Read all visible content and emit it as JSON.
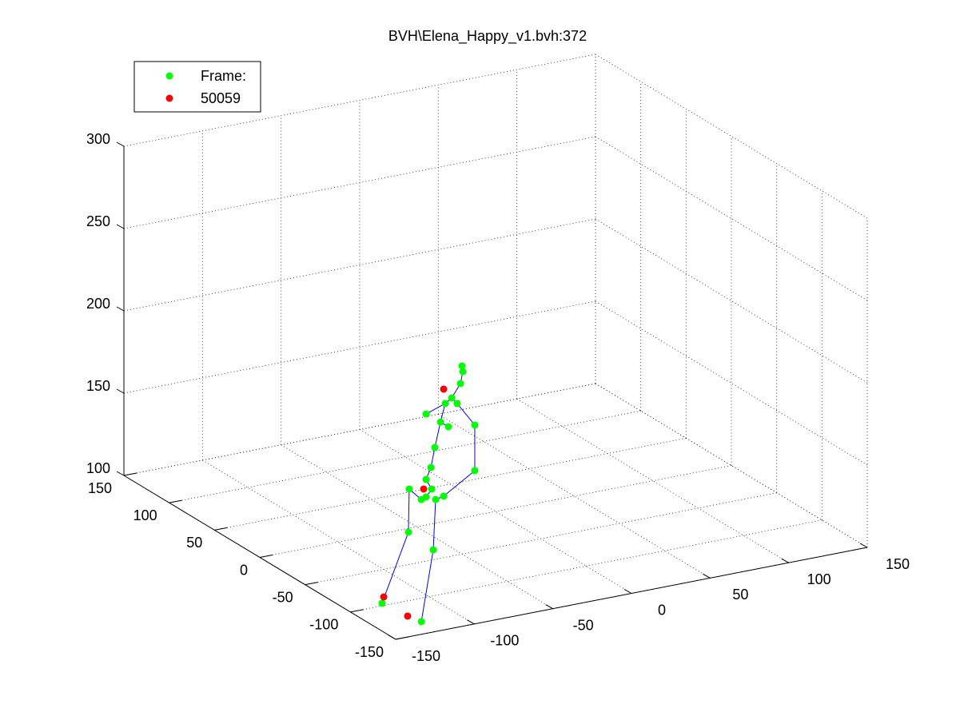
{
  "chart_data": {
    "type": "scatter3d",
    "title": "BVH\\Elena_Happy_v1.bvh:372",
    "series": [
      {
        "name": "Frame:",
        "color": "#00ff00",
        "x": [
          -90.5,
          -90.0,
          -91.5,
          -97.1,
          -101.2,
          -93.6,
          -113.4,
          -82.4,
          -104.2,
          -99.2,
          -107.8,
          -82.4,
          -110.3,
          -113.4,
          -109.8,
          -124.1,
          -116.4,
          -113.4,
          -107.3,
          -102.2,
          -124.6,
          -108.8,
          -141.4,
          -116.4
        ],
        "y": [
          -120,
          -120,
          -120,
          -120,
          -120,
          -120,
          -120,
          -120,
          -120,
          -120,
          -120,
          -120,
          -120,
          -120,
          -120,
          -120,
          -120,
          -120,
          -120,
          -120,
          -120,
          -120,
          -120,
          -120
        ],
        "z": [
          245.0,
          241.5,
          234.5,
          226.8,
          224.2,
          222.8,
          220.1,
          207.6,
          213.5,
          209.7,
          198.7,
          179.9,
          187.0,
          180.3,
          173.8,
          176.5,
          168.7,
          169.7,
          167.0,
          168.1,
          150.4,
          136.7,
          110.3,
          94.5
        ]
      },
      {
        "name": "50059",
        "color": "#ff0000",
        "x": [
          -102.2,
          -114.9,
          -140.3,
          -125.1
        ],
        "y": [
          -120,
          -120,
          -120,
          -120
        ],
        "z": [
          233.1,
          174.8,
          114.0,
          99.5
        ]
      }
    ],
    "edges": [
      [
        0,
        1
      ],
      [
        1,
        2
      ],
      [
        2,
        3
      ],
      [
        3,
        4
      ],
      [
        3,
        5
      ],
      [
        4,
        6
      ],
      [
        5,
        7
      ],
      [
        7,
        11
      ],
      [
        11,
        19
      ],
      [
        4,
        8
      ],
      [
        8,
        9
      ],
      [
        8,
        10
      ],
      [
        10,
        12
      ],
      [
        12,
        13
      ],
      [
        13,
        14
      ],
      [
        14,
        17
      ],
      [
        15,
        16
      ],
      [
        16,
        17
      ],
      [
        15,
        20
      ],
      [
        20,
        22
      ],
      [
        18,
        19
      ],
      [
        18,
        21
      ],
      [
        21,
        23
      ]
    ],
    "edge_color": "#0000ff",
    "xlim": [
      -150,
      150
    ],
    "ylim": [
      -150,
      150
    ],
    "zlim": [
      100,
      300
    ],
    "xticks": [
      -150,
      -100,
      -50,
      0,
      50,
      100,
      150
    ],
    "yticks": [
      -150,
      -100,
      -50,
      0,
      50,
      100,
      150
    ],
    "zticks": [
      100,
      150,
      200,
      250,
      300
    ],
    "grid": true,
    "legend": "upper left"
  }
}
